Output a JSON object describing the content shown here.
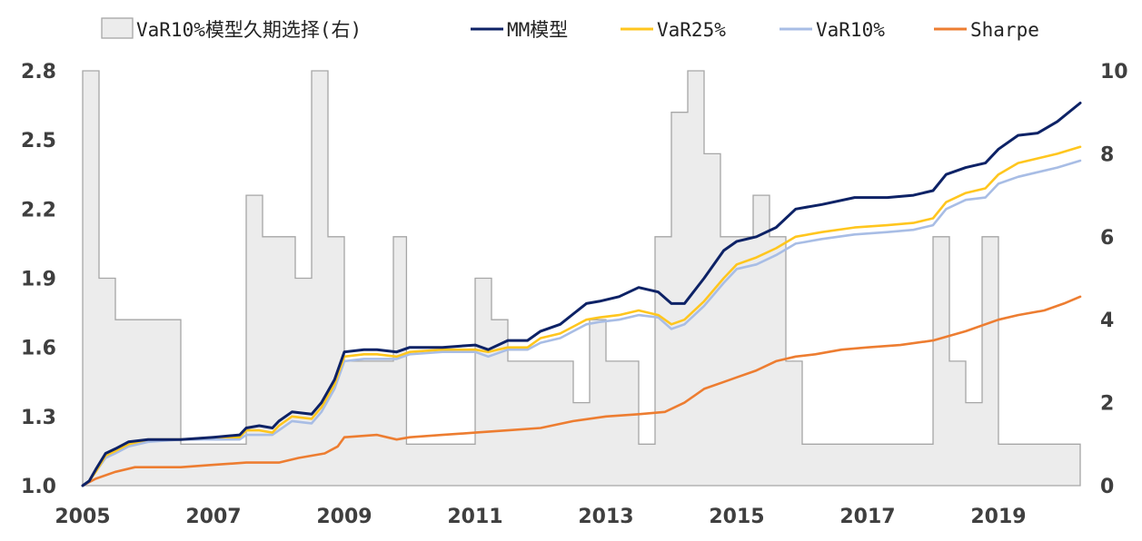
{
  "chart_data": {
    "type": "line",
    "title": "",
    "xlabel": "",
    "ylabel": "",
    "x_ticks": [
      "2005",
      "2007",
      "2009",
      "2011",
      "2013",
      "2015",
      "2017",
      "2019"
    ],
    "x_range": [
      2005.0,
      2020.25
    ],
    "y_left_ticks": [
      "1.0",
      "1.3",
      "1.6",
      "1.9",
      "2.2",
      "2.5",
      "2.8"
    ],
    "y_left_range": [
      1.0,
      2.8
    ],
    "y_right_ticks": [
      "0",
      "2",
      "4",
      "6",
      "8",
      "10"
    ],
    "y_right_range": [
      0,
      10
    ],
    "grid": false,
    "legend_position": "top",
    "legend": [
      {
        "label": "VaR10%模型久期选择(右)",
        "kind": "area",
        "color": "#ececec",
        "stroke": "#a6a6a6"
      },
      {
        "label": "MM模型",
        "kind": "line",
        "color": "#0d2266"
      },
      {
        "label": "VaR25%",
        "kind": "line",
        "color": "#ffc61e"
      },
      {
        "label": "VaR10%",
        "kind": "line",
        "color": "#a8bde5"
      },
      {
        "label": "Sharpe",
        "kind": "line",
        "color": "#ed7d31"
      }
    ],
    "duration_series": {
      "name": "VaR10%模型久期选择(右)",
      "axis": "right",
      "steps": [
        [
          2005.0,
          10
        ],
        [
          2005.25,
          5
        ],
        [
          2005.5,
          4
        ],
        [
          2006.5,
          1
        ],
        [
          2007.5,
          7
        ],
        [
          2007.75,
          6
        ],
        [
          2008.25,
          5
        ],
        [
          2008.5,
          10
        ],
        [
          2008.75,
          6
        ],
        [
          2009.0,
          3
        ],
        [
          2009.75,
          6
        ],
        [
          2009.95,
          1
        ],
        [
          2011.0,
          5
        ],
        [
          2011.25,
          4
        ],
        [
          2011.5,
          3
        ],
        [
          2012.5,
          2
        ],
        [
          2012.75,
          4
        ],
        [
          2013.0,
          3
        ],
        [
          2013.5,
          1
        ],
        [
          2013.75,
          6
        ],
        [
          2014.0,
          9
        ],
        [
          2014.25,
          10
        ],
        [
          2014.5,
          8
        ],
        [
          2014.75,
          6
        ],
        [
          2015.25,
          7
        ],
        [
          2015.5,
          6
        ],
        [
          2015.75,
          3
        ],
        [
          2016.0,
          1
        ],
        [
          2018.0,
          6
        ],
        [
          2018.25,
          3
        ],
        [
          2018.5,
          2
        ],
        [
          2018.75,
          6
        ],
        [
          2019.0,
          1
        ],
        [
          2020.25,
          1
        ]
      ]
    },
    "series": [
      {
        "name": "MM模型",
        "axis": "left",
        "points": [
          [
            2005.0,
            1.0
          ],
          [
            2005.1,
            1.02
          ],
          [
            2005.2,
            1.07
          ],
          [
            2005.35,
            1.14
          ],
          [
            2005.5,
            1.16
          ],
          [
            2005.7,
            1.19
          ],
          [
            2006.0,
            1.2
          ],
          [
            2006.5,
            1.2
          ],
          [
            2007.0,
            1.21
          ],
          [
            2007.4,
            1.22
          ],
          [
            2007.5,
            1.25
          ],
          [
            2007.7,
            1.26
          ],
          [
            2007.9,
            1.25
          ],
          [
            2008.0,
            1.28
          ],
          [
            2008.2,
            1.32
          ],
          [
            2008.5,
            1.31
          ],
          [
            2008.65,
            1.36
          ],
          [
            2008.85,
            1.46
          ],
          [
            2009.0,
            1.58
          ],
          [
            2009.3,
            1.59
          ],
          [
            2009.5,
            1.59
          ],
          [
            2009.8,
            1.58
          ],
          [
            2010.0,
            1.6
          ],
          [
            2010.5,
            1.6
          ],
          [
            2011.0,
            1.61
          ],
          [
            2011.2,
            1.59
          ],
          [
            2011.5,
            1.63
          ],
          [
            2011.8,
            1.63
          ],
          [
            2012.0,
            1.67
          ],
          [
            2012.3,
            1.7
          ],
          [
            2012.7,
            1.79
          ],
          [
            2012.9,
            1.8
          ],
          [
            2013.2,
            1.82
          ],
          [
            2013.5,
            1.86
          ],
          [
            2013.8,
            1.84
          ],
          [
            2014.0,
            1.79
          ],
          [
            2014.2,
            1.79
          ],
          [
            2014.5,
            1.9
          ],
          [
            2014.8,
            2.02
          ],
          [
            2015.0,
            2.06
          ],
          [
            2015.3,
            2.08
          ],
          [
            2015.6,
            2.12
          ],
          [
            2015.9,
            2.2
          ],
          [
            2016.3,
            2.22
          ],
          [
            2016.8,
            2.25
          ],
          [
            2017.3,
            2.25
          ],
          [
            2017.7,
            2.26
          ],
          [
            2018.0,
            2.28
          ],
          [
            2018.2,
            2.35
          ],
          [
            2018.5,
            2.38
          ],
          [
            2018.8,
            2.4
          ],
          [
            2019.0,
            2.46
          ],
          [
            2019.3,
            2.52
          ],
          [
            2019.6,
            2.53
          ],
          [
            2019.9,
            2.58
          ],
          [
            2020.25,
            2.66
          ]
        ]
      },
      {
        "name": "VaR25%",
        "axis": "left",
        "points": [
          [
            2005.0,
            1.0
          ],
          [
            2005.1,
            1.02
          ],
          [
            2005.2,
            1.06
          ],
          [
            2005.35,
            1.13
          ],
          [
            2005.5,
            1.15
          ],
          [
            2005.7,
            1.18
          ],
          [
            2006.0,
            1.2
          ],
          [
            2006.5,
            1.2
          ],
          [
            2007.0,
            1.21
          ],
          [
            2007.4,
            1.21
          ],
          [
            2007.5,
            1.24
          ],
          [
            2007.7,
            1.24
          ],
          [
            2007.9,
            1.23
          ],
          [
            2008.0,
            1.26
          ],
          [
            2008.2,
            1.3
          ],
          [
            2008.5,
            1.29
          ],
          [
            2008.65,
            1.34
          ],
          [
            2008.85,
            1.44
          ],
          [
            2009.0,
            1.56
          ],
          [
            2009.3,
            1.57
          ],
          [
            2009.5,
            1.57
          ],
          [
            2009.8,
            1.56
          ],
          [
            2010.0,
            1.58
          ],
          [
            2010.5,
            1.59
          ],
          [
            2011.0,
            1.59
          ],
          [
            2011.2,
            1.58
          ],
          [
            2011.5,
            1.6
          ],
          [
            2011.8,
            1.6
          ],
          [
            2012.0,
            1.64
          ],
          [
            2012.3,
            1.66
          ],
          [
            2012.7,
            1.72
          ],
          [
            2012.9,
            1.73
          ],
          [
            2013.2,
            1.74
          ],
          [
            2013.5,
            1.76
          ],
          [
            2013.8,
            1.74
          ],
          [
            2014.0,
            1.7
          ],
          [
            2014.2,
            1.72
          ],
          [
            2014.5,
            1.8
          ],
          [
            2014.8,
            1.9
          ],
          [
            2015.0,
            1.96
          ],
          [
            2015.3,
            1.99
          ],
          [
            2015.6,
            2.03
          ],
          [
            2015.9,
            2.08
          ],
          [
            2016.3,
            2.1
          ],
          [
            2016.8,
            2.12
          ],
          [
            2017.3,
            2.13
          ],
          [
            2017.7,
            2.14
          ],
          [
            2018.0,
            2.16
          ],
          [
            2018.2,
            2.23
          ],
          [
            2018.5,
            2.27
          ],
          [
            2018.8,
            2.29
          ],
          [
            2019.0,
            2.35
          ],
          [
            2019.3,
            2.4
          ],
          [
            2019.6,
            2.42
          ],
          [
            2019.9,
            2.44
          ],
          [
            2020.25,
            2.47
          ]
        ]
      },
      {
        "name": "VaR10%",
        "axis": "left",
        "points": [
          [
            2005.0,
            1.0
          ],
          [
            2005.1,
            1.02
          ],
          [
            2005.2,
            1.06
          ],
          [
            2005.35,
            1.12
          ],
          [
            2005.5,
            1.14
          ],
          [
            2005.7,
            1.17
          ],
          [
            2006.0,
            1.19
          ],
          [
            2006.5,
            1.2
          ],
          [
            2007.0,
            1.2
          ],
          [
            2007.4,
            1.2
          ],
          [
            2007.5,
            1.22
          ],
          [
            2007.7,
            1.22
          ],
          [
            2007.9,
            1.22
          ],
          [
            2008.0,
            1.24
          ],
          [
            2008.2,
            1.28
          ],
          [
            2008.5,
            1.27
          ],
          [
            2008.65,
            1.32
          ],
          [
            2008.85,
            1.42
          ],
          [
            2009.0,
            1.54
          ],
          [
            2009.3,
            1.55
          ],
          [
            2009.5,
            1.55
          ],
          [
            2009.8,
            1.55
          ],
          [
            2010.0,
            1.57
          ],
          [
            2010.5,
            1.58
          ],
          [
            2011.0,
            1.58
          ],
          [
            2011.2,
            1.56
          ],
          [
            2011.5,
            1.59
          ],
          [
            2011.8,
            1.59
          ],
          [
            2012.0,
            1.62
          ],
          [
            2012.3,
            1.64
          ],
          [
            2012.7,
            1.7
          ],
          [
            2012.9,
            1.71
          ],
          [
            2013.2,
            1.72
          ],
          [
            2013.5,
            1.74
          ],
          [
            2013.8,
            1.73
          ],
          [
            2014.0,
            1.68
          ],
          [
            2014.2,
            1.7
          ],
          [
            2014.5,
            1.78
          ],
          [
            2014.8,
            1.88
          ],
          [
            2015.0,
            1.94
          ],
          [
            2015.3,
            1.96
          ],
          [
            2015.6,
            2.0
          ],
          [
            2015.9,
            2.05
          ],
          [
            2016.3,
            2.07
          ],
          [
            2016.8,
            2.09
          ],
          [
            2017.3,
            2.1
          ],
          [
            2017.7,
            2.11
          ],
          [
            2018.0,
            2.13
          ],
          [
            2018.2,
            2.2
          ],
          [
            2018.5,
            2.24
          ],
          [
            2018.8,
            2.25
          ],
          [
            2019.0,
            2.31
          ],
          [
            2019.3,
            2.34
          ],
          [
            2019.6,
            2.36
          ],
          [
            2019.9,
            2.38
          ],
          [
            2020.25,
            2.41
          ]
        ]
      },
      {
        "name": "Sharpe",
        "axis": "left",
        "points": [
          [
            2005.0,
            1.0
          ],
          [
            2005.2,
            1.03
          ],
          [
            2005.5,
            1.06
          ],
          [
            2005.8,
            1.08
          ],
          [
            2006.2,
            1.08
          ],
          [
            2006.5,
            1.08
          ],
          [
            2007.0,
            1.09
          ],
          [
            2007.5,
            1.1
          ],
          [
            2008.0,
            1.1
          ],
          [
            2008.3,
            1.12
          ],
          [
            2008.7,
            1.14
          ],
          [
            2008.9,
            1.17
          ],
          [
            2009.0,
            1.21
          ],
          [
            2009.5,
            1.22
          ],
          [
            2009.8,
            1.2
          ],
          [
            2010.0,
            1.21
          ],
          [
            2010.5,
            1.22
          ],
          [
            2011.0,
            1.23
          ],
          [
            2011.5,
            1.24
          ],
          [
            2012.0,
            1.25
          ],
          [
            2012.5,
            1.28
          ],
          [
            2013.0,
            1.3
          ],
          [
            2013.5,
            1.31
          ],
          [
            2013.9,
            1.32
          ],
          [
            2014.2,
            1.36
          ],
          [
            2014.5,
            1.42
          ],
          [
            2014.8,
            1.45
          ],
          [
            2015.0,
            1.47
          ],
          [
            2015.3,
            1.5
          ],
          [
            2015.6,
            1.54
          ],
          [
            2015.9,
            1.56
          ],
          [
            2016.2,
            1.57
          ],
          [
            2016.6,
            1.59
          ],
          [
            2017.0,
            1.6
          ],
          [
            2017.5,
            1.61
          ],
          [
            2018.0,
            1.63
          ],
          [
            2018.5,
            1.67
          ],
          [
            2019.0,
            1.72
          ],
          [
            2019.3,
            1.74
          ],
          [
            2019.7,
            1.76
          ],
          [
            2020.0,
            1.79
          ],
          [
            2020.25,
            1.82
          ]
        ]
      }
    ]
  }
}
